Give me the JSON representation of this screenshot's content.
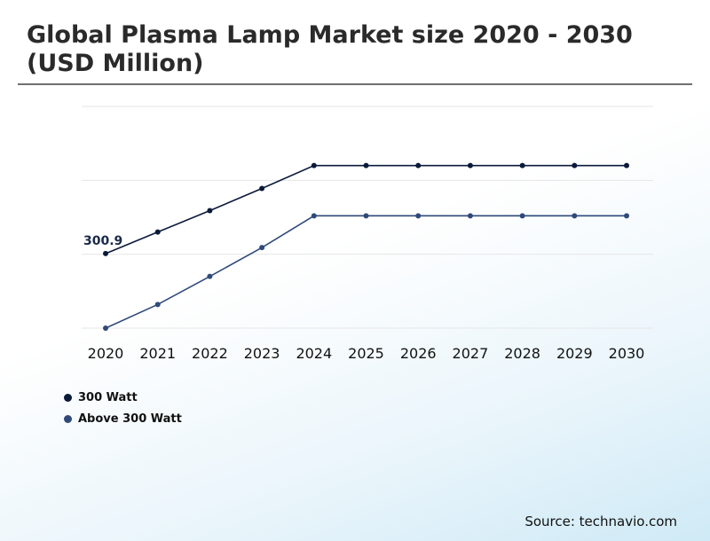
{
  "title": "Global Plasma Lamp Market size 2020 - 2030 (USD Million)",
  "source": "Source: technavio.com",
  "chart_data": {
    "type": "line",
    "title": "Global Plasma Lamp Market size 2020 - 2030 (USD Million)",
    "x": [
      "2020",
      "2021",
      "2022",
      "2023",
      "2024",
      "2025",
      "2026",
      "2027",
      "2028",
      "2029",
      "2030"
    ],
    "ylim": [
      200,
      500
    ],
    "grid": true,
    "yticks_shown": false,
    "legend": "bottom-left",
    "series": [
      {
        "name": "300 Watt",
        "color": "#0b1a3a",
        "values": [
          300.9,
          330,
          359,
          389,
          420,
          420,
          420,
          420,
          420,
          420,
          420
        ],
        "data_labels": [
          {
            "index": 0,
            "text": "300.9"
          }
        ]
      },
      {
        "name": "Above 300 Watt",
        "color": "#2f4a7a",
        "values": [
          200,
          232,
          270,
          309,
          352,
          352,
          352,
          352,
          352,
          352,
          352
        ]
      }
    ]
  }
}
